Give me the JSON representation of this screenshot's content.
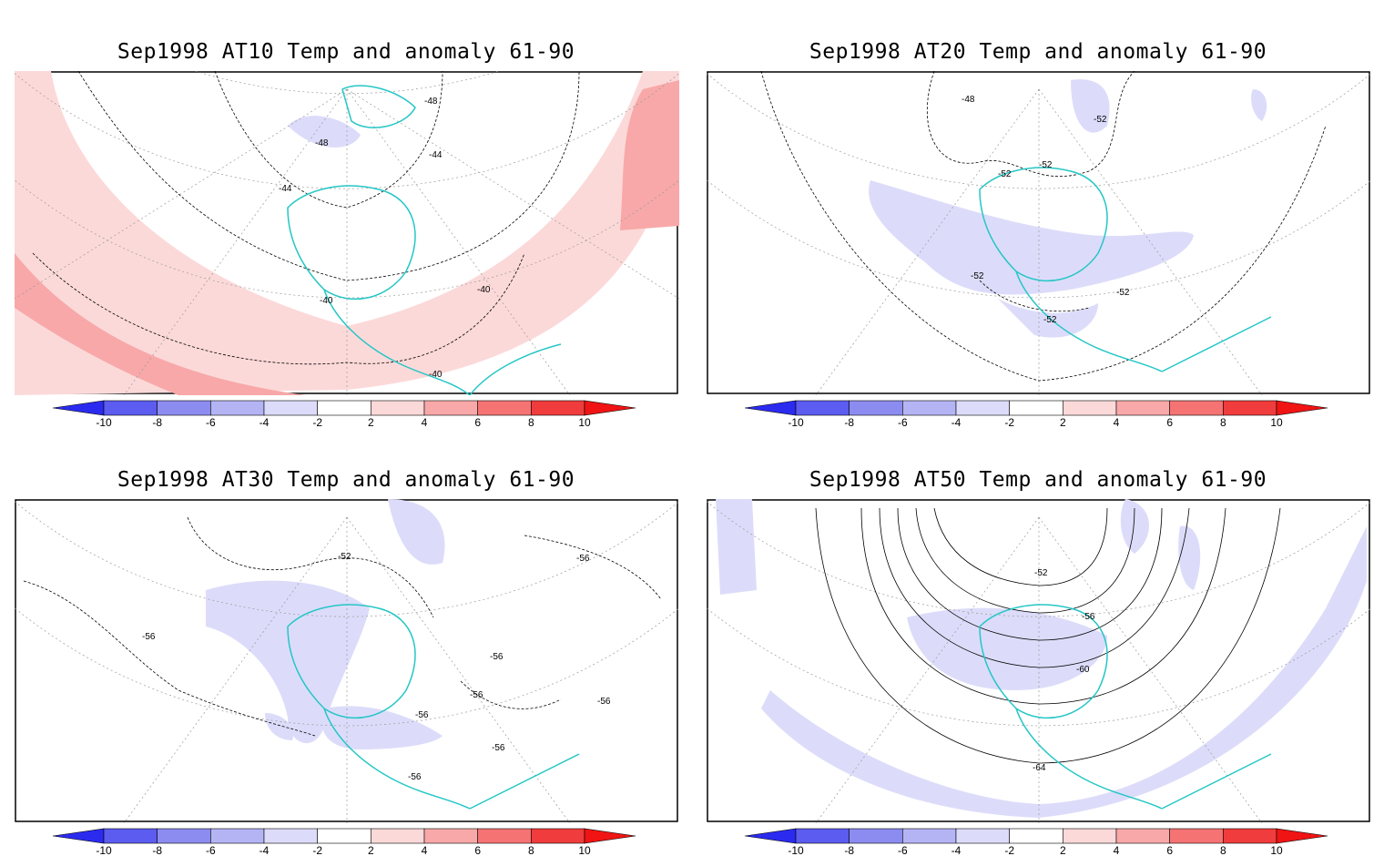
{
  "panels": [
    {
      "title": "Sep1998 AT10 Temp and anomaly 61-90",
      "contour_labels": [
        "-48",
        "-48",
        "-44",
        "-44",
        "-40",
        "-40",
        "-40"
      ],
      "anomaly_sign": "warm"
    },
    {
      "title": "Sep1998 AT20 Temp and anomaly 61-90",
      "contour_labels": [
        "-48",
        "-52",
        "-52",
        "-52",
        "-52",
        "-52",
        "-52"
      ],
      "anomaly_sign": "cold"
    },
    {
      "title": "Sep1998 AT30 Temp and anomaly 61-90",
      "contour_labels": [
        "-52",
        "-56",
        "-56",
        "-56",
        "-56",
        "-56",
        "-56",
        "-56",
        "-56"
      ],
      "anomaly_sign": "cold"
    },
    {
      "title": "Sep1998 AT50 Temp and anomaly 61-90",
      "contour_labels": [
        "-52",
        "-56",
        "-60",
        "-64"
      ],
      "anomaly_sign": "cold"
    }
  ],
  "colorbar": {
    "ticks": [
      "-10",
      "-8",
      "-6",
      "-4",
      "-2",
      "2",
      "4",
      "6",
      "8",
      "10"
    ],
    "colors": [
      "#2b2bf0",
      "#5c5cf0",
      "#8c8cf0",
      "#b4b4f5",
      "#dcdcfa",
      "#ffffff",
      "#fcd9d9",
      "#f8a8a8",
      "#f57373",
      "#f03c3c",
      "#f01414"
    ]
  },
  "colors": {
    "coastline": "#26c6c6",
    "contour": "#000000",
    "grid": "#999999",
    "warm_anomaly": "#fcd9d9",
    "warm_anomaly_strong": "#f8a8a8",
    "cold_anomaly": "#dcdcfa"
  }
}
